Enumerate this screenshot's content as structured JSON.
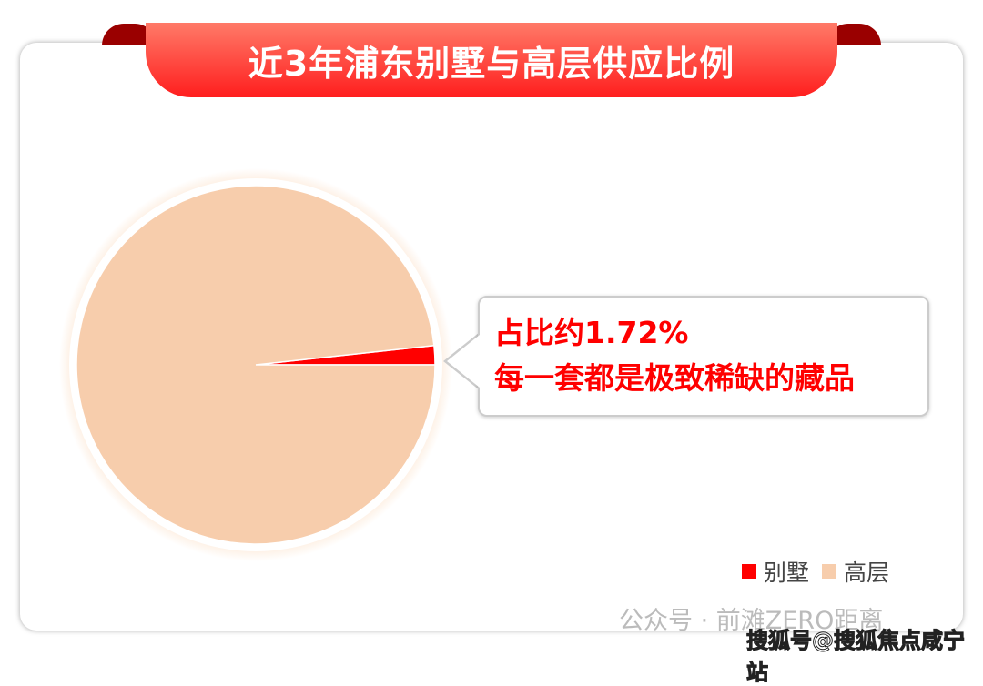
{
  "chart_data": {
    "type": "pie",
    "title": "近3年浦东别墅与高层供应比例",
    "categories": [
      "别墅",
      "高层"
    ],
    "values": [
      1.72,
      98.28
    ],
    "unit": "%",
    "colors": [
      "#ff0000",
      "#f7cdac"
    ],
    "legend_position": "bottom-right",
    "annotation": {
      "line1_prefix": "占比约",
      "line1_value": "1.72%",
      "line2": "每一套都是极致稀缺的藏品"
    }
  },
  "watermarks": [
    "公众号 · 前滩ZERO距离",
    "搜狐号@搜狐焦点咸宁站"
  ]
}
